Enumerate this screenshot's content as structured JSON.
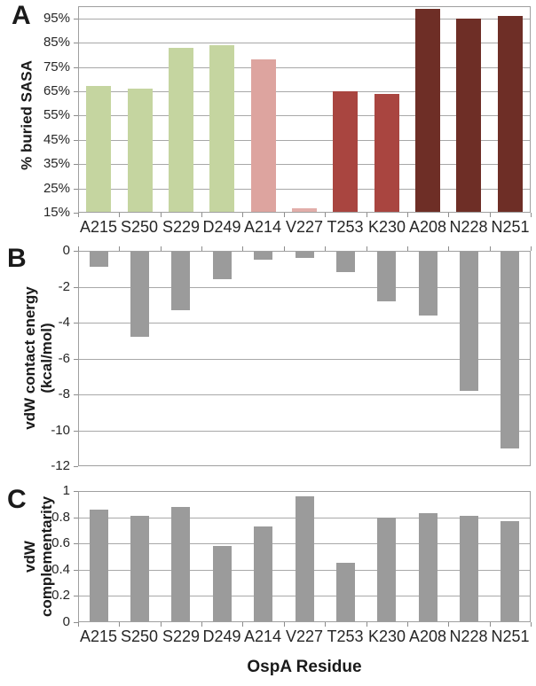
{
  "x_axis_title": "OspA Residue",
  "categories": [
    "A215",
    "S250",
    "S229",
    "D249",
    "A214",
    "V227",
    "T253",
    "K230",
    "A208",
    "N228",
    "N251"
  ],
  "colors": {
    "green_group": "#c5d5a0",
    "pink_group": "#dda49f",
    "pink_light": "#e2aeaa",
    "brick_group": "#a94540",
    "dark_red_group": "#6e2e26",
    "gray_bars": "#9b9b9b",
    "gridline": "#a8a8a8",
    "plot_border": "#9f9f9f"
  },
  "chart_data": [
    {
      "panel": "A",
      "type": "bar",
      "title": "",
      "ylabel": "% buried SASA",
      "ylabel_line1": "% buried SASA",
      "ylabel_line2": "",
      "xlabel": "",
      "ylim": [
        15,
        100
      ],
      "grid": true,
      "legend": "none",
      "categories": [
        "A215",
        "S250",
        "S229",
        "D249",
        "A214",
        "V227",
        "T253",
        "K230",
        "A208",
        "N228",
        "N251"
      ],
      "values": [
        67,
        66,
        83,
        84,
        78,
        17,
        65,
        64,
        99,
        95,
        96
      ],
      "bar_colors": [
        "#c5d5a0",
        "#c5d5a0",
        "#c5d5a0",
        "#c5d5a0",
        "#dda49f",
        "#e2aeaa",
        "#a94540",
        "#a94540",
        "#6e2e26",
        "#6e2e26",
        "#6e2e26"
      ],
      "y_ticks": [
        {
          "label": "95%",
          "value": 95
        },
        {
          "label": "85%",
          "value": 85
        },
        {
          "label": "75%",
          "value": 75
        },
        {
          "label": "65%",
          "value": 65
        },
        {
          "label": "55%",
          "value": 55
        },
        {
          "label": "45%",
          "value": 45
        },
        {
          "label": "35%",
          "value": 35
        },
        {
          "label": "25%",
          "value": 25
        },
        {
          "label": "15%",
          "value": 15
        }
      ],
      "show_x_labels": true
    },
    {
      "panel": "B",
      "type": "bar",
      "title": "",
      "ylabel": "vdW contact energy (kcal/mol)",
      "ylabel_line1": "vdW contact energy",
      "ylabel_line2": "(kcal/mol)",
      "xlabel": "",
      "ylim": [
        -12,
        0
      ],
      "grid": true,
      "legend": "none",
      "categories": [
        "A215",
        "S250",
        "S229",
        "D249",
        "A214",
        "V227",
        "T253",
        "K230",
        "A208",
        "N228",
        "N251"
      ],
      "values": [
        -0.9,
        -4.8,
        -3.3,
        -1.6,
        -0.5,
        -0.4,
        -1.2,
        -2.8,
        -3.6,
        -7.8,
        -11.0
      ],
      "bar_colors": [
        "#9b9b9b",
        "#9b9b9b",
        "#9b9b9b",
        "#9b9b9b",
        "#9b9b9b",
        "#9b9b9b",
        "#9b9b9b",
        "#9b9b9b",
        "#9b9b9b",
        "#9b9b9b",
        "#9b9b9b"
      ],
      "y_ticks": [
        {
          "label": "0",
          "value": 0
        },
        {
          "label": "-2",
          "value": -2
        },
        {
          "label": "-4",
          "value": -4
        },
        {
          "label": "-6",
          "value": -6
        },
        {
          "label": "-8",
          "value": -8
        },
        {
          "label": "-10",
          "value": -10
        },
        {
          "label": "-12",
          "value": -12
        }
      ],
      "show_x_labels": false
    },
    {
      "panel": "C",
      "type": "bar",
      "title": "",
      "ylabel": "vdW complementarity",
      "ylabel_line1": "vdW",
      "ylabel_line2": "complementarity",
      "xlabel": "OspA Residue",
      "ylim": [
        0,
        1
      ],
      "grid": true,
      "legend": "none",
      "categories": [
        "A215",
        "S250",
        "S229",
        "D249",
        "A214",
        "V227",
        "T253",
        "K230",
        "A208",
        "N228",
        "N251"
      ],
      "values": [
        0.86,
        0.81,
        0.88,
        0.58,
        0.73,
        0.96,
        0.45,
        0.8,
        0.83,
        0.81,
        0.77
      ],
      "bar_colors": [
        "#9b9b9b",
        "#9b9b9b",
        "#9b9b9b",
        "#9b9b9b",
        "#9b9b9b",
        "#9b9b9b",
        "#9b9b9b",
        "#9b9b9b",
        "#9b9b9b",
        "#9b9b9b",
        "#9b9b9b"
      ],
      "y_ticks": [
        {
          "label": "1",
          "value": 1
        },
        {
          "label": "0.8",
          "value": 0.8
        },
        {
          "label": "0.6",
          "value": 0.6
        },
        {
          "label": "0.4",
          "value": 0.4
        },
        {
          "label": "0.2",
          "value": 0.2
        },
        {
          "label": "0",
          "value": 0
        }
      ],
      "show_x_labels": true
    }
  ]
}
